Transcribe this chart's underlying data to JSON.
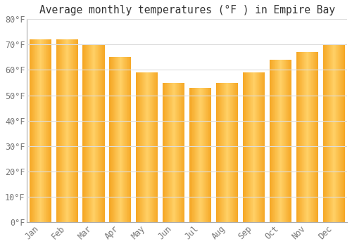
{
  "title": "Average monthly temperatures (°F ) in Empire Bay",
  "months": [
    "Jan",
    "Feb",
    "Mar",
    "Apr",
    "May",
    "Jun",
    "Jul",
    "Aug",
    "Sep",
    "Oct",
    "Nov",
    "Dec"
  ],
  "values": [
    72,
    72,
    70,
    65,
    59,
    55,
    53,
    55,
    59,
    64,
    67,
    70
  ],
  "bar_color_left": "#F5A623",
  "bar_color_right": "#FFD066",
  "bar_color_mid": "#FFC040",
  "ylim": [
    0,
    80
  ],
  "yticks": [
    0,
    10,
    20,
    30,
    40,
    50,
    60,
    70,
    80
  ],
  "ytick_labels": [
    "0°F",
    "10°F",
    "20°F",
    "30°F",
    "40°F",
    "50°F",
    "60°F",
    "70°F",
    "80°F"
  ],
  "background_color": "#FFFFFF",
  "grid_color": "#DDDDDD",
  "title_fontsize": 10.5,
  "tick_fontsize": 8.5,
  "font_color": "#777777",
  "bar_width": 0.82
}
